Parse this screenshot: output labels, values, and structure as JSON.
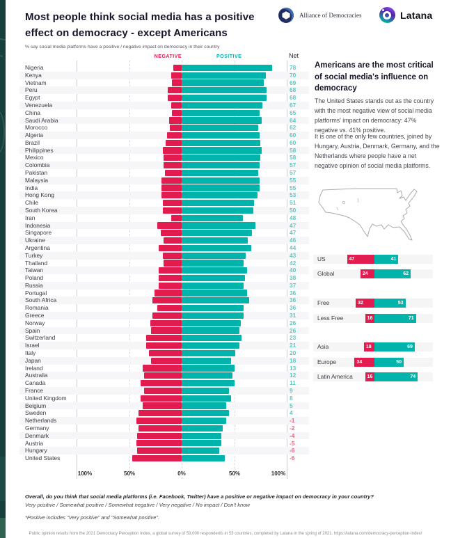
{
  "header": {
    "title": "Most people think social media has a positive effect on democracy - except Americans",
    "subtitle": "% say social media platforms have a positive / negative impact on democracy in their country",
    "alliance_label": "Alliance of Democracies",
    "latana_label": "Latana"
  },
  "sidebar": {
    "heading": "Americans are the most critical of social media's influence on democracy",
    "para1": "The United States stands out as the country with the most negative view of social media platforms' impact on democracy: 47% negative vs. 41% positive.",
    "para2": "It is one of the only few countries, joined by Hungary, Austria, Denmark, Germany, and the Netherlands where people have a net negative opinion of social media platforms."
  },
  "footer": {
    "question": "Overall, do you think that social media platforms (i.e. Facebook, Twitter) have a positive or negative impact on democracy in your country?",
    "answers": "Very positive / Somewhat positive / Somewhat negative / Very negative / No impact / Don't know",
    "note": "*Positive includes \"Very positive\" and \"Somewhat positive\".",
    "source": "Public opinion results from the 2021 Democracy Perception Index, a global survey of 53,000 respondents in 53 countries, completed by Latana in the spring of 2021. https://latana.com/democracy-perception-index/"
  },
  "chart_data": [
    {
      "type": "bar",
      "variant": "diverging-horizontal",
      "title": "Most people think social media has a positive effect on democracy - except Americans",
      "subtitle": "% say social media platforms have a positive / negative impact on democracy in their country",
      "legend": [
        "NEGATIVE",
        "POSITIVE"
      ],
      "net_column": "Net",
      "xticks": [
        "100%",
        "50%",
        "0%",
        "50%",
        "100%"
      ],
      "xlim": [
        -100,
        100
      ],
      "grid": true,
      "colors": {
        "negative": "#E31C50",
        "positive": "#00B3AB",
        "net_positive": "#5BC7C2",
        "net_negative": "#F0627E"
      },
      "rows": [
        {
          "country": "Nigeria",
          "negative": 8,
          "positive": 86,
          "net": 78
        },
        {
          "country": "Kenya",
          "negative": 10,
          "positive": 80,
          "net": 70
        },
        {
          "country": "Vietnam",
          "negative": 9,
          "positive": 78,
          "net": 69
        },
        {
          "country": "Peru",
          "negative": 13,
          "positive": 81,
          "net": 68
        },
        {
          "country": "Egypt",
          "negative": 13,
          "positive": 81,
          "net": 68
        },
        {
          "country": "Venezuela",
          "negative": 10,
          "positive": 77,
          "net": 67
        },
        {
          "country": "China",
          "negative": 9,
          "positive": 74,
          "net": 65
        },
        {
          "country": "Saudi Arabia",
          "negative": 12,
          "positive": 76,
          "net": 64
        },
        {
          "country": "Morocco",
          "negative": 11,
          "positive": 73,
          "net": 62
        },
        {
          "country": "Algeria",
          "negative": 14,
          "positive": 74,
          "net": 60
        },
        {
          "country": "Brazil",
          "negative": 15,
          "positive": 75,
          "net": 60
        },
        {
          "country": "Philippines",
          "negative": 18,
          "positive": 76,
          "net": 58
        },
        {
          "country": "Mexico",
          "negative": 17,
          "positive": 75,
          "net": 58
        },
        {
          "country": "Colombia",
          "negative": 17,
          "positive": 74,
          "net": 57
        },
        {
          "country": "Pakistan",
          "negative": 16,
          "positive": 73,
          "net": 57
        },
        {
          "country": "Malaysia",
          "negative": 19,
          "positive": 74,
          "net": 55
        },
        {
          "country": "India",
          "negative": 19,
          "positive": 74,
          "net": 55
        },
        {
          "country": "Hong Kong",
          "negative": 19,
          "positive": 72,
          "net": 53
        },
        {
          "country": "Chile",
          "negative": 18,
          "positive": 69,
          "net": 51
        },
        {
          "country": "South Korea",
          "negative": 18,
          "positive": 68,
          "net": 50
        },
        {
          "country": "Iran",
          "negative": 10,
          "positive": 58,
          "net": 48
        },
        {
          "country": "Indonesia",
          "negative": 23,
          "positive": 70,
          "net": 47
        },
        {
          "country": "Singapore",
          "negative": 20,
          "positive": 67,
          "net": 47
        },
        {
          "country": "Ukraine",
          "negative": 17,
          "positive": 63,
          "net": 46
        },
        {
          "country": "Argentina",
          "negative": 22,
          "positive": 66,
          "net": 44
        },
        {
          "country": "Turkey",
          "negative": 18,
          "positive": 61,
          "net": 43
        },
        {
          "country": "Thailand",
          "negative": 17,
          "positive": 59,
          "net": 42
        },
        {
          "country": "Taiwan",
          "negative": 22,
          "positive": 62,
          "net": 40
        },
        {
          "country": "Poland",
          "negative": 22,
          "positive": 60,
          "net": 38
        },
        {
          "country": "Russia",
          "negative": 22,
          "positive": 59,
          "net": 37
        },
        {
          "country": "Portugal",
          "negative": 26,
          "positive": 62,
          "net": 36
        },
        {
          "country": "South Africa",
          "negative": 28,
          "positive": 64,
          "net": 36
        },
        {
          "country": "Romania",
          "negative": 23,
          "positive": 59,
          "net": 36
        },
        {
          "country": "Greece",
          "negative": 28,
          "positive": 59,
          "net": 31
        },
        {
          "country": "Norway",
          "negative": 30,
          "positive": 56,
          "net": 26
        },
        {
          "country": "Spain",
          "negative": 29,
          "positive": 55,
          "net": 26
        },
        {
          "country": "Switzerland",
          "negative": 34,
          "positive": 57,
          "net": 23
        },
        {
          "country": "Israel",
          "negative": 34,
          "positive": 55,
          "net": 21
        },
        {
          "country": "Italy",
          "negative": 31,
          "positive": 51,
          "net": 20
        },
        {
          "country": "Japan",
          "negative": 29,
          "positive": 47,
          "net": 18
        },
        {
          "country": "Ireland",
          "negative": 37,
          "positive": 50,
          "net": 13
        },
        {
          "country": "Australia",
          "negative": 36,
          "positive": 48,
          "net": 12
        },
        {
          "country": "Canada",
          "negative": 39,
          "positive": 50,
          "net": 11
        },
        {
          "country": "France",
          "negative": 36,
          "positive": 45,
          "net": 9
        },
        {
          "country": "United Kingdom",
          "negative": 39,
          "positive": 47,
          "net": 8
        },
        {
          "country": "Belgium",
          "negative": 37,
          "positive": 42,
          "net": 5
        },
        {
          "country": "Sweden",
          "negative": 41,
          "positive": 45,
          "net": 4
        },
        {
          "country": "Netherlands",
          "negative": 43,
          "positive": 42,
          "net": -1
        },
        {
          "country": "Germany",
          "negative": 41,
          "positive": 39,
          "net": -2
        },
        {
          "country": "Denmark",
          "negative": 42,
          "positive": 38,
          "net": -4
        },
        {
          "country": "Austria",
          "negative": 43,
          "positive": 38,
          "net": -5
        },
        {
          "country": "Hungary",
          "negative": 42,
          "positive": 36,
          "net": -6
        },
        {
          "country": "United States",
          "negative": 47,
          "positive": 41,
          "net": -6
        }
      ]
    },
    {
      "type": "bar",
      "variant": "stacked-comparison",
      "colors": {
        "negative": "#E31C50",
        "positive": "#00B3AB"
      },
      "rows": [
        {
          "label": "US",
          "negative": 47,
          "positive": 41
        },
        {
          "label": "Global",
          "negative": 24,
          "positive": 62
        },
        {
          "label": "Free",
          "negative": 32,
          "positive": 53
        },
        {
          "label": "Less Free",
          "negative": 16,
          "positive": 71
        },
        {
          "label": "Asia",
          "negative": 18,
          "positive": 69
        },
        {
          "label": "Europe",
          "negative": 34,
          "positive": 50
        },
        {
          "label": "Latin America",
          "negative": 16,
          "positive": 74
        }
      ]
    }
  ]
}
